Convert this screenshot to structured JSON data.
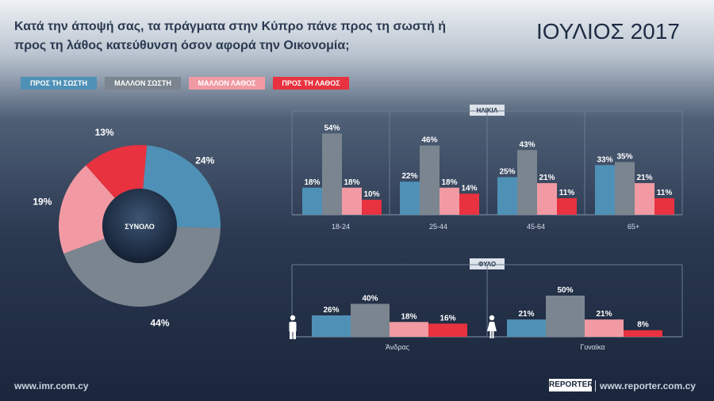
{
  "header": {
    "question": "Κατά την άποψή σας, τα πράγματα στην Κύπρο πάνε προς τη σωστή ή προς τη λάθος κατεύθυνση όσον αφορά την Οικονομία;",
    "period": "ΙΟΥΛΙΟΣ 2017"
  },
  "legend": {
    "items": [
      {
        "label": "ΠΡΟΣ ΤΗ ΣΩΣΤΗ",
        "color": "#4f91b6"
      },
      {
        "label": "ΜΑΛΛΟΝ ΣΩΣΤΗ",
        "color": "#7b858f"
      },
      {
        "label": "ΜΑΛΛΟΝ ΛΑΘΟΣ",
        "color": "#f19aa4"
      },
      {
        "label": "ΠΡΟΣ ΤΗ ΛΑΘΟΣ",
        "color": "#e8323f"
      }
    ]
  },
  "footer": {
    "left_url": "www.imr.com.cy",
    "brand": "REPORTER",
    "right_url": "www.reporter.com.cy"
  },
  "chart_data": [
    {
      "type": "pie",
      "center_label": "ΣΥΝΟΛΟ",
      "labels": [
        "ΠΡΟΣ ΤΗ ΣΩΣΤΗ",
        "ΜΑΛΛΟΝ ΣΩΣΤΗ",
        "ΜΑΛΛΟΝ ΛΑΘΟΣ",
        "ΠΡΟΣ ΤΗ ΛΑΘΟΣ"
      ],
      "values": [
        24,
        44,
        19,
        13
      ],
      "value_labels": [
        "24%",
        "44%",
        "19%",
        "13%"
      ],
      "colors": [
        "#4f91b6",
        "#7b858f",
        "#f19aa4",
        "#e8323f"
      ]
    },
    {
      "type": "bar",
      "title": "ΗΛΙΚΙΑ",
      "categories": [
        "18-24",
        "25-44",
        "45-64",
        "65+"
      ],
      "series": [
        {
          "name": "ΠΡΟΣ ΤΗ ΣΩΣΤΗ",
          "values": [
            18,
            22,
            25,
            33
          ],
          "labels": [
            "18%",
            "22%",
            "25%",
            "33%"
          ],
          "color": "#4f91b6"
        },
        {
          "name": "ΜΑΛΛΟΝ ΣΩΣΤΗ",
          "values": [
            54,
            46,
            43,
            35
          ],
          "labels": [
            "54%",
            "46%",
            "43%",
            "35%"
          ],
          "color": "#7b858f"
        },
        {
          "name": "ΜΑΛΛΟΝ ΛΑΘΟΣ",
          "values": [
            18,
            18,
            21,
            21
          ],
          "labels": [
            "18%",
            "18%",
            "21%",
            "21%"
          ],
          "color": "#f19aa4"
        },
        {
          "name": "ΠΡΟΣ ΤΗ ΛΑΘΟΣ",
          "values": [
            10,
            14,
            11,
            11
          ],
          "labels": [
            "10%",
            "14%",
            "11%",
            "11%"
          ],
          "color": "#e8323f"
        }
      ],
      "grid": true
    },
    {
      "type": "bar",
      "title": "ΦΥΛΟ",
      "categories": [
        "Άνδρας",
        "Γυναίκα"
      ],
      "category_icons": [
        "male-icon",
        "female-icon"
      ],
      "series": [
        {
          "name": "ΠΡΟΣ ΤΗ ΣΩΣΤΗ",
          "values": [
            26,
            21
          ],
          "labels": [
            "26%",
            "21%"
          ],
          "color": "#4f91b6"
        },
        {
          "name": "ΜΑΛΛΟΝ ΣΩΣΤΗ",
          "values": [
            40,
            50
          ],
          "labels": [
            "40%",
            "50%"
          ],
          "color": "#7b858f"
        },
        {
          "name": "ΜΑΛΛΟΝ ΛΑΘΟΣ",
          "values": [
            18,
            21
          ],
          "labels": [
            "18%",
            "21%"
          ],
          "color": "#f19aa4"
        },
        {
          "name": "ΠΡΟΣ ΤΗ ΛΑΘΟΣ",
          "values": [
            16,
            8
          ],
          "labels": [
            "16%",
            "8%"
          ],
          "color": "#e8323f"
        }
      ],
      "grid": true
    }
  ]
}
